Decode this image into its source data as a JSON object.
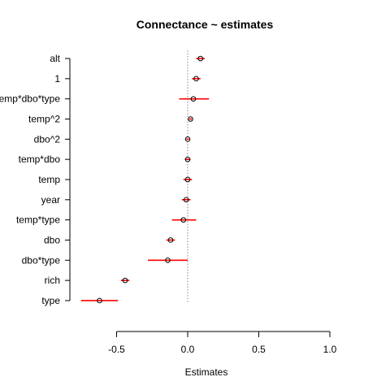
{
  "chart_data": {
    "type": "scatter",
    "title": "Connectance ~ estimates",
    "xlabel": "Estimates",
    "ylabel": "",
    "xlim": [
      -0.78,
      1.0
    ],
    "xticks": [
      -0.5,
      0.0,
      0.5,
      1.0
    ],
    "xtick_labels": [
      "-0.5",
      "0.0",
      "0.5",
      "1.0"
    ],
    "reference_line": 0.0,
    "grid": false,
    "categories": [
      "alt",
      "1",
      "temp*dbo*type",
      "temp^2",
      "dbo^2",
      "temp*dbo",
      "temp",
      "year",
      "temp*type",
      "dbo",
      "dbo*type",
      "rich",
      "type"
    ],
    "estimates": [
      0.09,
      0.06,
      0.04,
      0.02,
      0.0,
      0.0,
      0.0,
      -0.01,
      -0.03,
      -0.12,
      -0.14,
      -0.44,
      -0.62
    ],
    "lower": [
      0.06,
      0.03,
      -0.06,
      0.01,
      -0.01,
      -0.02,
      -0.03,
      -0.04,
      -0.11,
      -0.15,
      -0.28,
      -0.47,
      -0.75
    ],
    "upper": [
      0.12,
      0.09,
      0.15,
      0.03,
      0.01,
      0.02,
      0.03,
      0.02,
      0.06,
      -0.09,
      0.0,
      -0.41,
      -0.49
    ],
    "colors": {
      "interval": "#ff0000",
      "point": "#000000",
      "reference": "#888888"
    }
  }
}
